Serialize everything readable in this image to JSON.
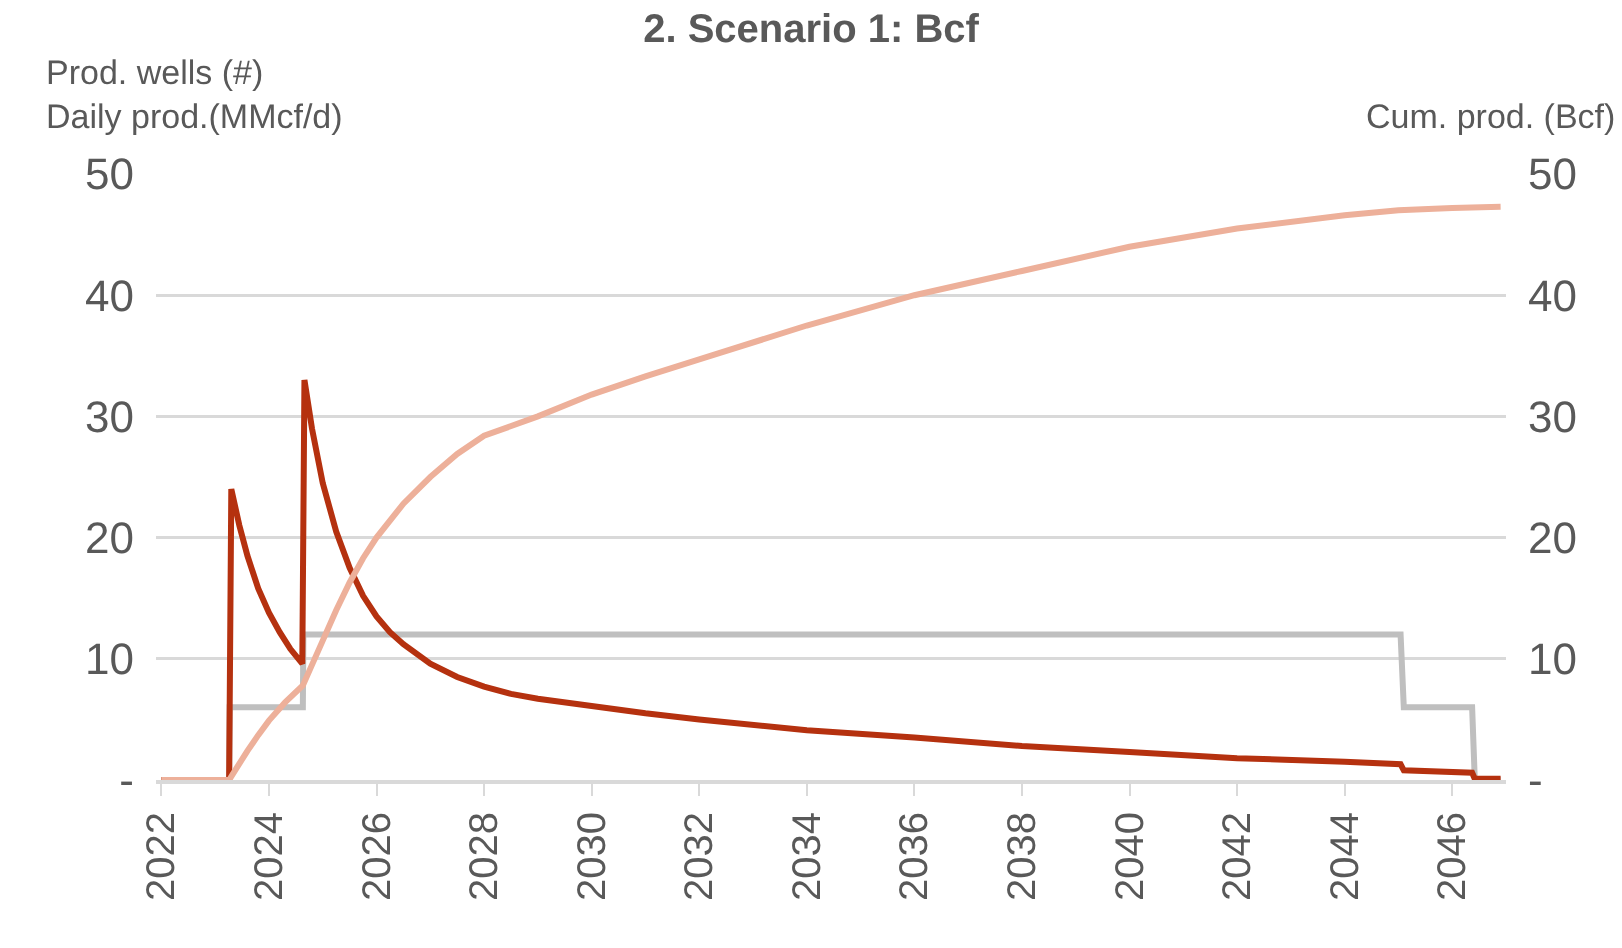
{
  "chart_data": {
    "type": "line",
    "title": "2. Scenario 1: Bcf",
    "ylabel": "Prod. wells (#)\nDaily prod.(MMcf/d)",
    "y2label": "Cum. prod. (Bcf)",
    "xlim": [
      2021.9,
      2047
    ],
    "xticks": [
      2022,
      2024,
      2026,
      2028,
      2030,
      2032,
      2034,
      2036,
      2038,
      2040,
      2042,
      2044,
      2046
    ],
    "ylim": [
      0,
      50
    ],
    "yticks": [
      {
        "value": 0,
        "label": "-"
      },
      10,
      20,
      30,
      40,
      50
    ],
    "y2lim": [
      0,
      50
    ],
    "y2ticks": [
      {
        "value": 0,
        "label": "-"
      },
      10,
      20,
      30,
      40,
      50
    ],
    "grid": "y",
    "marker": "none",
    "line_style": "solid",
    "series": [
      {
        "color": "#bfbfbf",
        "x": [
          2022,
          2023.26,
          2023.27,
          2024.63,
          2024.64,
          2045.04,
          2045.1,
          2046.37,
          2046.42,
          2046.9
        ],
        "values": [
          0,
          0,
          6,
          6,
          12,
          12,
          6,
          6,
          0,
          0
        ]
      },
      {
        "color": "#b5310f",
        "x": [
          2022,
          2023.26,
          2023.3,
          2023.45,
          2023.6,
          2023.8,
          2024,
          2024.2,
          2024.4,
          2024.62,
          2024.66,
          2024.8,
          2025,
          2025.25,
          2025.5,
          2025.75,
          2026,
          2026.25,
          2026.5,
          2027,
          2027.5,
          2028,
          2028.5,
          2029,
          2030,
          2031,
          2032,
          2034,
          2036,
          2038,
          2040,
          2042,
          2044,
          2045.04,
          2045.1,
          2046.37,
          2046.42,
          2046.9
        ],
        "values": [
          0,
          0,
          24,
          21,
          18.5,
          15.8,
          13.8,
          12.2,
          10.8,
          9.6,
          33,
          29,
          24.5,
          20.5,
          17.5,
          15.2,
          13.5,
          12.2,
          11.2,
          9.6,
          8.5,
          7.7,
          7.1,
          6.7,
          6.1,
          5.5,
          5,
          4.1,
          3.5,
          2.8,
          2.3,
          1.8,
          1.5,
          1.3,
          0.8,
          0.6,
          0.1,
          0.1
        ]
      },
      {
        "color": "#edb09a",
        "axis": "y2",
        "x": [
          2022,
          2023.26,
          2023.4,
          2023.6,
          2023.8,
          2024,
          2024.3,
          2024.63,
          2024.8,
          2025,
          2025.25,
          2025.5,
          2025.75,
          2026,
          2026.5,
          2027,
          2027.5,
          2028,
          2029,
          2030,
          2031,
          2032,
          2034,
          2036,
          2038,
          2040,
          2042,
          2044,
          2045,
          2046,
          2046.9
        ],
        "values": [
          0,
          0,
          1,
          2.4,
          3.7,
          4.9,
          6.4,
          7.8,
          9.5,
          11.5,
          14,
          16.3,
          18.3,
          20,
          22.8,
          25,
          26.9,
          28.4,
          30,
          31.8,
          33.3,
          34.7,
          37.5,
          40,
          42,
          44,
          45.5,
          46.6,
          47,
          47.2,
          47.3
        ]
      }
    ]
  }
}
